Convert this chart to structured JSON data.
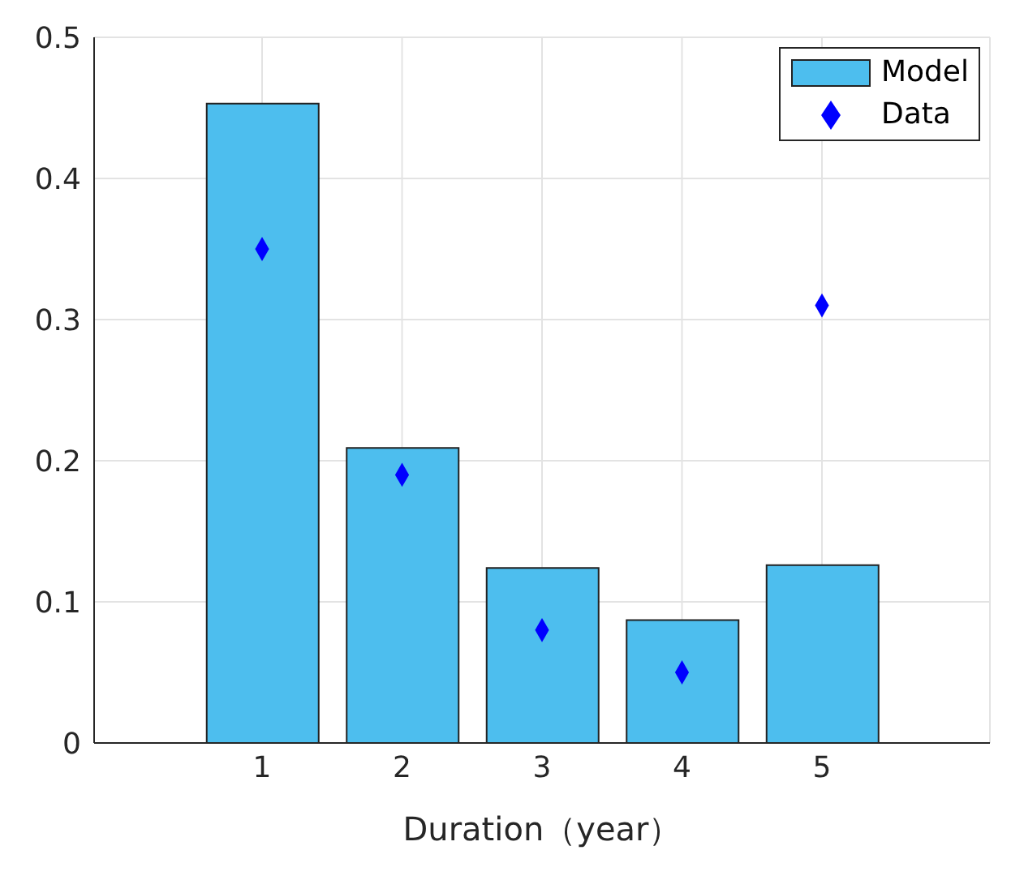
{
  "chart_data": {
    "type": "bar",
    "xlabel": "Duration（year）",
    "x": [
      1,
      2,
      3,
      4,
      5
    ],
    "series": [
      {
        "name": "Model",
        "color": "#4dbeee",
        "values": [
          0.453,
          0.209,
          0.124,
          0.087,
          0.126
        ]
      },
      {
        "name": "Data",
        "type": "scatter",
        "color": "#0000ff",
        "marker": "diamond",
        "values": [
          0.35,
          0.19,
          0.08,
          0.05,
          0.31
        ]
      }
    ],
    "xlim": [
      -0.2,
      6.2
    ],
    "xticks": [
      1,
      2,
      3,
      4,
      5
    ],
    "ylim": [
      0,
      0.5
    ],
    "yticks": [
      0,
      0.1,
      0.2,
      0.3,
      0.4,
      0.5
    ],
    "grid": true,
    "legend": "top right"
  }
}
